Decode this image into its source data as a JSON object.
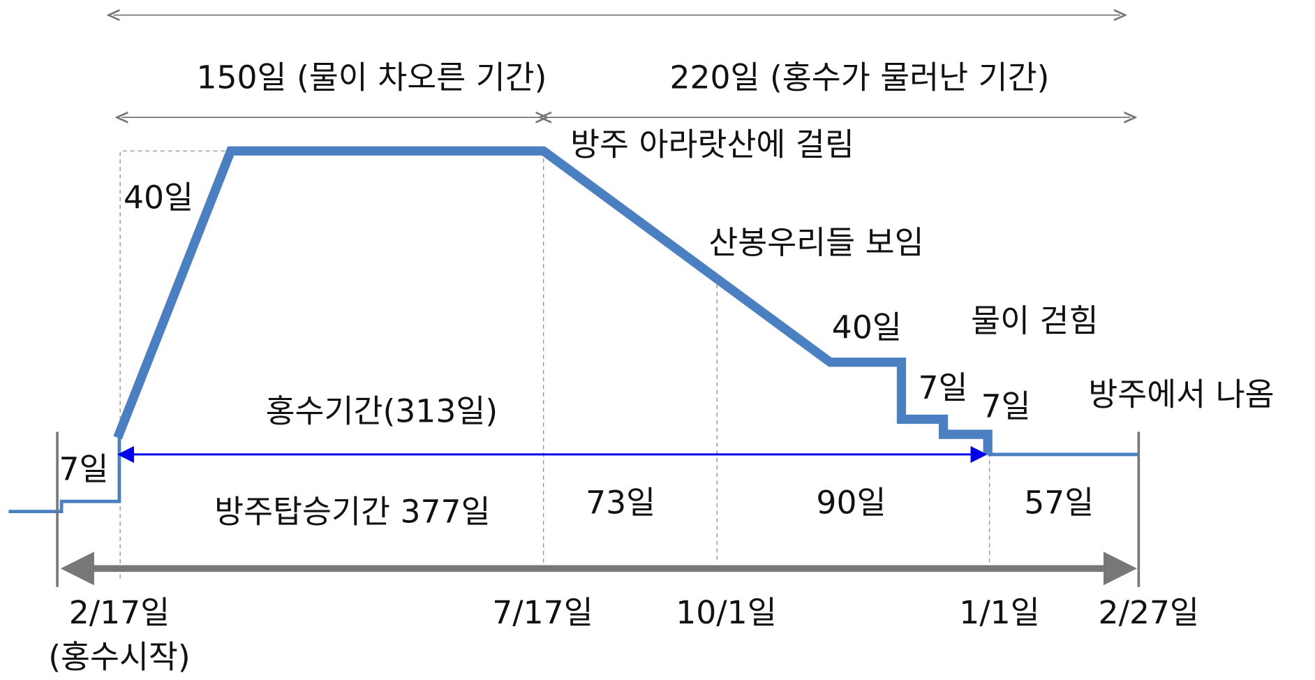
{
  "periods": [
    "150일 (물이 차오른 기간)",
    "220일 (홍수가 물러난 기간)"
  ],
  "events": [
    "방주 아라랏산에 걸림",
    "산봉우리들 보임",
    "물이 걷힘",
    "방주에서 나옴"
  ],
  "durations": {
    "rise": "40일",
    "recede": "40일",
    "step1": "7일",
    "step2": "7일",
    "before": "7일",
    "flood": "홍수기간(313일)",
    "boarding": "방주탑승기간 377일",
    "seg1": "73일",
    "seg2": "90일",
    "seg3": "57일"
  },
  "dates": {
    "start": "2/17일",
    "start_note": "(홍수시작)",
    "d2": "7/17일",
    "d3": "10/1일",
    "d4": "1/1일",
    "d5": "2/27일"
  }
}
